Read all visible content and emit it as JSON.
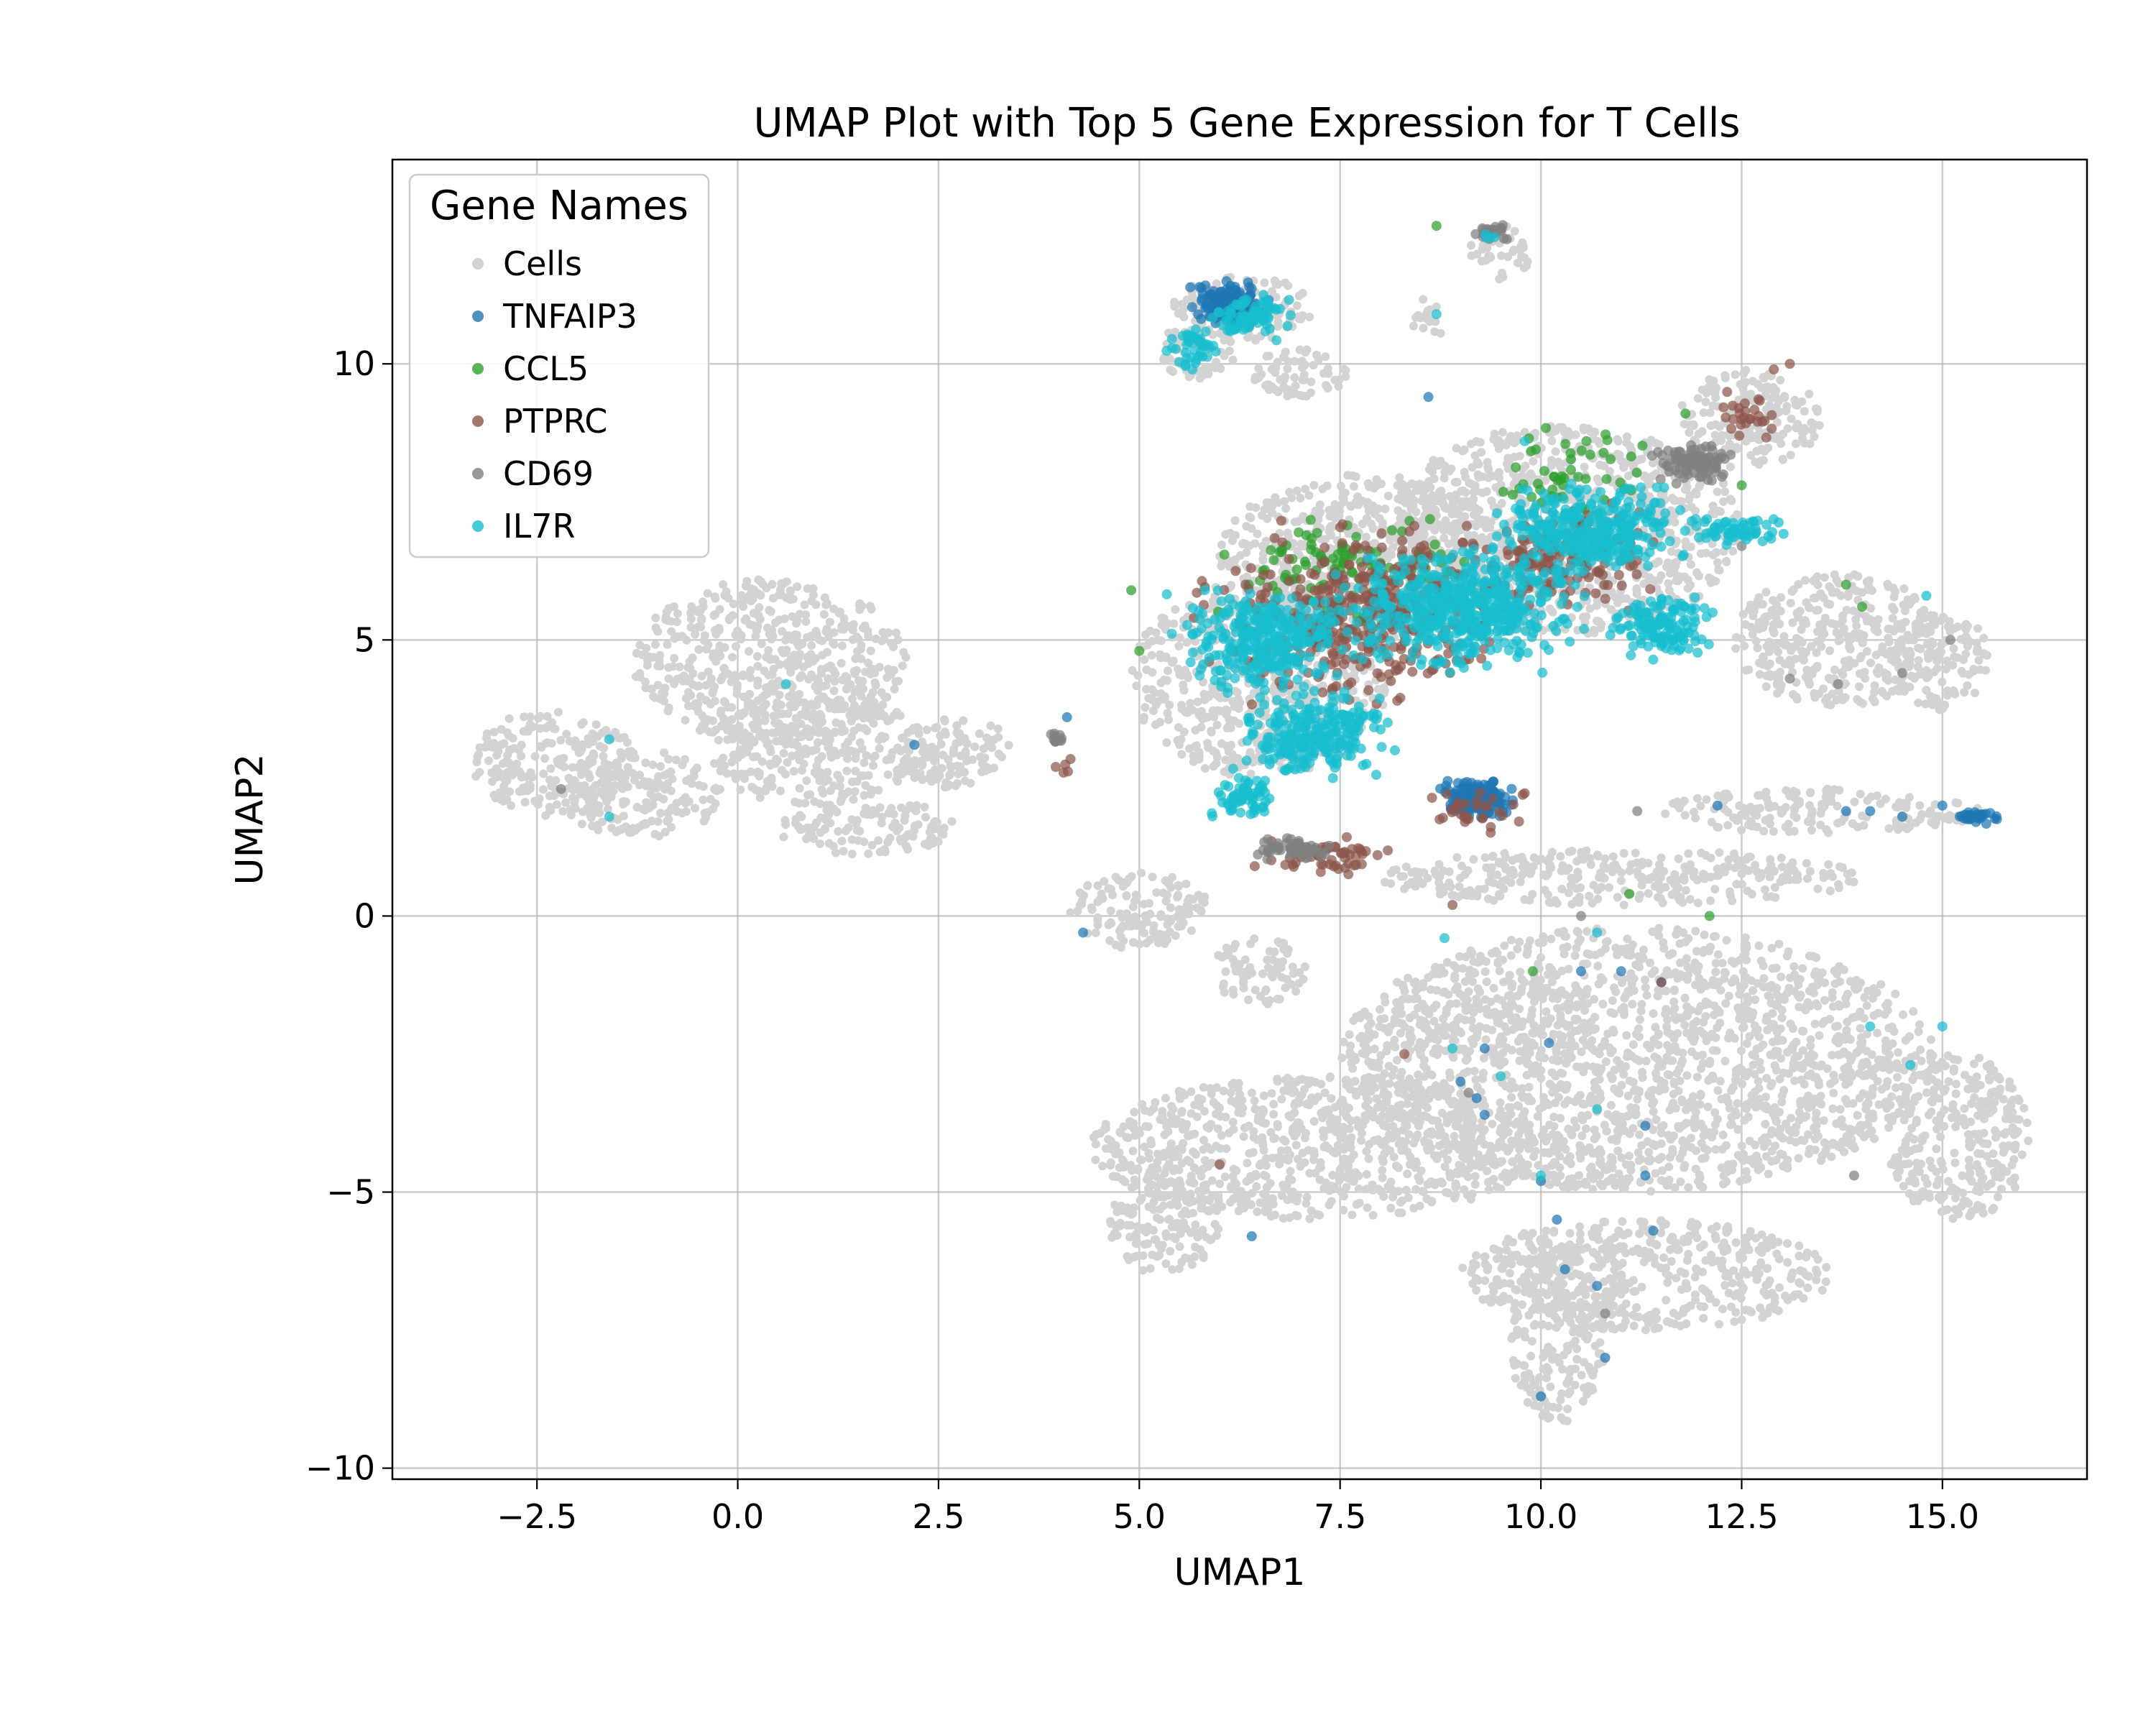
{
  "chart_data": {
    "type": "scatter",
    "title": "UMAP Plot with Top 5 Gene Expression for T Cells",
    "xlabel": "UMAP1",
    "ylabel": "UMAP2",
    "xlim": [
      -4.3,
      16.8
    ],
    "ylim": [
      -10.2,
      13.7
    ],
    "xticks": [
      -2.5,
      0.0,
      2.5,
      5.0,
      7.5,
      10.0,
      12.5,
      15.0
    ],
    "xtick_labels": [
      "−2.5",
      "0.0",
      "2.5",
      "5.0",
      "7.5",
      "10.0",
      "12.5",
      "15.0"
    ],
    "yticks": [
      -10,
      -5,
      0,
      5,
      10
    ],
    "ytick_labels": [
      "−10",
      "−5",
      "0",
      "5",
      "10"
    ],
    "grid": true,
    "legend": {
      "title": "Gene Names",
      "placement": "top-left"
    },
    "series": [
      {
        "name": "Cells",
        "color": "#d3d3d3",
        "regions": [
          {
            "cx": 0.4,
            "cy": 4.6,
            "rx": 1.7,
            "ry": 1.5
          },
          {
            "cx": -2.3,
            "cy": 2.8,
            "rx": 1.0,
            "ry": 1.0
          },
          {
            "cx": -1.2,
            "cy": 2.2,
            "rx": 1.0,
            "ry": 0.8
          },
          {
            "cx": 1.0,
            "cy": 3.0,
            "rx": 1.4,
            "ry": 1.0
          },
          {
            "cx": 2.7,
            "cy": 3.0,
            "rx": 0.7,
            "ry": 0.7
          },
          {
            "cx": 1.6,
            "cy": 1.6,
            "rx": 1.1,
            "ry": 0.5
          },
          {
            "cx": 5.0,
            "cy": 0.1,
            "rx": 0.9,
            "ry": 0.7
          },
          {
            "cx": 5.7,
            "cy": 10.2,
            "rx": 0.5,
            "ry": 0.5
          },
          {
            "cx": 6.3,
            "cy": 11.0,
            "rx": 0.9,
            "ry": 0.6
          },
          {
            "cx": 7.0,
            "cy": 9.8,
            "rx": 0.6,
            "ry": 0.5
          },
          {
            "cx": 9.5,
            "cy": 12.0,
            "rx": 0.4,
            "ry": 0.5
          },
          {
            "cx": 8.6,
            "cy": 10.8,
            "rx": 0.2,
            "ry": 0.4
          },
          {
            "cx": 7.8,
            "cy": 6.5,
            "rx": 1.8,
            "ry": 1.5
          },
          {
            "cx": 6.5,
            "cy": 4.3,
            "rx": 1.6,
            "ry": 1.8
          },
          {
            "cx": 10.3,
            "cy": 7.0,
            "rx": 2.2,
            "ry": 1.9
          },
          {
            "cx": 12.6,
            "cy": 9.0,
            "rx": 0.9,
            "ry": 0.9
          },
          {
            "cx": 13.7,
            "cy": 5.0,
            "rx": 1.3,
            "ry": 1.2
          },
          {
            "cx": 15.0,
            "cy": 4.6,
            "rx": 0.6,
            "ry": 0.9
          },
          {
            "cx": 13.5,
            "cy": 1.9,
            "rx": 2.0,
            "ry": 0.4
          },
          {
            "cx": 11.0,
            "cy": 0.7,
            "rx": 3.0,
            "ry": 0.5
          },
          {
            "cx": 11.2,
            "cy": -2.6,
            "rx": 3.7,
            "ry": 2.4
          },
          {
            "cx": 7.2,
            "cy": -4.2,
            "rx": 2.8,
            "ry": 1.3
          },
          {
            "cx": 5.3,
            "cy": -5.5,
            "rx": 0.7,
            "ry": 1.0
          },
          {
            "cx": 11.3,
            "cy": -6.5,
            "rx": 2.3,
            "ry": 1.0
          },
          {
            "cx": 10.2,
            "cy": -7.6,
            "rx": 0.6,
            "ry": 1.6
          },
          {
            "cx": 15.2,
            "cy": -4.0,
            "rx": 0.9,
            "ry": 1.5
          },
          {
            "cx": 6.5,
            "cy": -1.0,
            "rx": 0.6,
            "ry": 0.6
          }
        ],
        "count": 9000
      },
      {
        "name": "TNFAIP3",
        "color": "#1f77b4",
        "regions": [
          {
            "cx": 6.1,
            "cy": 11.1,
            "rx": 0.6,
            "ry": 0.5
          },
          {
            "cx": 9.2,
            "cy": 2.1,
            "rx": 0.6,
            "ry": 0.5
          },
          {
            "cx": 15.4,
            "cy": 1.8,
            "rx": 0.4,
            "ry": 0.15
          }
        ],
        "points": [
          [
            4.3,
            -0.3
          ],
          [
            2.2,
            3.1
          ],
          [
            13.8,
            1.9
          ],
          [
            14.1,
            1.9
          ],
          [
            14.5,
            1.8
          ],
          [
            15.0,
            2.0
          ],
          [
            9.2,
            -3.3
          ],
          [
            9.0,
            -3.0
          ],
          [
            9.3,
            -3.6
          ],
          [
            10.0,
            -4.8
          ],
          [
            10.2,
            -5.5
          ],
          [
            10.3,
            -6.4
          ],
          [
            10.7,
            -6.7
          ],
          [
            10.8,
            -8.0
          ],
          [
            10.0,
            -8.7
          ],
          [
            11.3,
            -3.8
          ],
          [
            11.3,
            -4.7
          ],
          [
            11.4,
            -5.7
          ],
          [
            6.4,
            -5.8
          ],
          [
            10.1,
            -2.3
          ],
          [
            9.3,
            -2.4
          ],
          [
            10.5,
            -1.0
          ],
          [
            11.0,
            -1.0
          ],
          [
            11.5,
            -1.2
          ],
          [
            8.6,
            9.4
          ],
          [
            12.2,
            2.0
          ],
          [
            4.1,
            3.6
          ]
        ],
        "count": 320
      },
      {
        "name": "CCL5",
        "color": "#2ca02c",
        "regions": [
          {
            "cx": 7.6,
            "cy": 6.3,
            "rx": 2.0,
            "ry": 1.2
          },
          {
            "cx": 10.5,
            "cy": 8.0,
            "rx": 1.2,
            "ry": 1.0
          }
        ],
        "points": [
          [
            11.1,
            0.4
          ],
          [
            12.1,
            0.0
          ],
          [
            9.9,
            -1.0
          ],
          [
            8.7,
            12.5
          ],
          [
            11.8,
            9.1
          ],
          [
            12.5,
            7.8
          ],
          [
            13.8,
            6.0
          ],
          [
            14.0,
            5.6
          ],
          [
            4.9,
            5.9
          ],
          [
            5.0,
            4.8
          ]
        ],
        "count": 150
      },
      {
        "name": "PTPRC",
        "color": "#8c564b",
        "regions": [
          {
            "cx": 7.4,
            "cy": 1.1,
            "rx": 1.2,
            "ry": 0.5
          },
          {
            "cx": 9.2,
            "cy": 1.9,
            "rx": 0.7,
            "ry": 0.5
          },
          {
            "cx": 12.6,
            "cy": 9.1,
            "rx": 0.5,
            "ry": 0.6
          },
          {
            "cx": 4.0,
            "cy": 2.7,
            "rx": 0.3,
            "ry": 0.2
          },
          {
            "cx": 7.8,
            "cy": 5.5,
            "rx": 2.3,
            "ry": 2.0
          },
          {
            "cx": 10.2,
            "cy": 6.5,
            "rx": 1.5,
            "ry": 1.2
          }
        ],
        "points": [
          [
            6.0,
            -4.5
          ],
          [
            8.3,
            -2.5
          ],
          [
            11.5,
            -1.2
          ],
          [
            8.9,
            0.2
          ],
          [
            13.1,
            10.0
          ],
          [
            12.9,
            9.9
          ]
        ],
        "count": 700
      },
      {
        "name": "CD69",
        "color": "#7f7f7f",
        "regions": [
          {
            "cx": 6.9,
            "cy": 1.2,
            "rx": 0.6,
            "ry": 0.25
          },
          {
            "cx": 4.0,
            "cy": 3.2,
            "rx": 0.15,
            "ry": 0.2
          },
          {
            "cx": 9.4,
            "cy": 12.4,
            "rx": 0.3,
            "ry": 0.2
          },
          {
            "cx": 11.9,
            "cy": 8.2,
            "rx": 0.6,
            "ry": 0.4
          }
        ],
        "points": [
          [
            -2.2,
            2.3
          ],
          [
            13.9,
            -4.7
          ],
          [
            10.5,
            0.0
          ],
          [
            11.2,
            1.9
          ],
          [
            10.8,
            -7.2
          ],
          [
            9.1,
            -3.2
          ],
          [
            13.1,
            4.3
          ],
          [
            15.1,
            5.0
          ],
          [
            13.7,
            4.2
          ],
          [
            12.5,
            6.7
          ],
          [
            14.5,
            4.4
          ]
        ],
        "count": 180
      },
      {
        "name": "IL7R",
        "color": "#17becf",
        "regions": [
          {
            "cx": 5.7,
            "cy": 10.3,
            "rx": 0.4,
            "ry": 0.5
          },
          {
            "cx": 6.4,
            "cy": 10.9,
            "rx": 0.7,
            "ry": 0.5
          },
          {
            "cx": 10.6,
            "cy": 7.0,
            "rx": 1.5,
            "ry": 1.0
          },
          {
            "cx": 12.4,
            "cy": 7.0,
            "rx": 0.8,
            "ry": 0.35
          },
          {
            "cx": 9.0,
            "cy": 5.6,
            "rx": 1.8,
            "ry": 1.3
          },
          {
            "cx": 6.6,
            "cy": 5.0,
            "rx": 1.3,
            "ry": 1.1
          },
          {
            "cx": 7.2,
            "cy": 3.3,
            "rx": 1.2,
            "ry": 1.0
          },
          {
            "cx": 6.3,
            "cy": 2.1,
            "rx": 0.5,
            "ry": 0.6
          },
          {
            "cx": 11.5,
            "cy": 5.3,
            "rx": 0.8,
            "ry": 0.8
          },
          {
            "cx": 9.3,
            "cy": 12.3,
            "rx": 0.2,
            "ry": 0.1
          }
        ],
        "points": [
          [
            -1.6,
            3.2
          ],
          [
            -1.6,
            1.8
          ],
          [
            0.6,
            4.2
          ],
          [
            14.1,
            -2.0
          ],
          [
            14.6,
            -2.7
          ],
          [
            15.0,
            -2.0
          ],
          [
            10.7,
            -3.5
          ],
          [
            10.0,
            -4.7
          ],
          [
            8.8,
            -0.4
          ],
          [
            9.5,
            -2.9
          ],
          [
            10.7,
            -0.3
          ],
          [
            8.9,
            -2.4
          ],
          [
            14.8,
            5.8
          ],
          [
            9.8,
            8.6
          ],
          [
            8.7,
            10.9
          ]
        ],
        "count": 1800
      }
    ]
  }
}
